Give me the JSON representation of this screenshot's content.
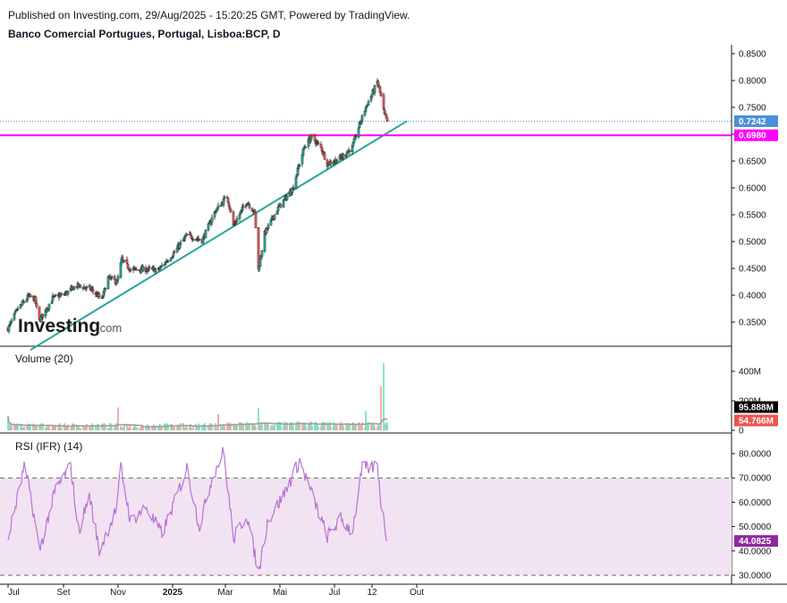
{
  "header": {
    "published": "Published on Investing.com, 29/Aug/2025 - 15:20:25 GMT, Powered by TradingView.",
    "symbol": "Banco Comercial Portugues, Portugal, Lisboa:BCP, D"
  },
  "logo": {
    "text": "Investing",
    "suffix": ".com"
  },
  "colors": {
    "up": "#26a69a",
    "down": "#ef5350",
    "trendline": "#26a69a",
    "hline": "#ff00ff",
    "last_price": "#4a90d9",
    "vol_up": "#7ee0c0",
    "vol_down": "#f4a6a0",
    "vol_ma": "#9e9e9e",
    "rsi": "#b774d6",
    "rsi_band": "#f2e3f2"
  },
  "chart_data": [
    {
      "type": "candlestick",
      "pane": "price",
      "title": "Banco Comercial Portugues, Portugal, Lisboa:BCP, D",
      "x_ticks": [
        "Jul",
        "Set",
        "Nov",
        "2025",
        "Mar",
        "Mai",
        "Jul",
        "12",
        "Out"
      ],
      "y_ticks": [
        "0.8500",
        "0.8000",
        "0.7500",
        "0.7000",
        "0.6500",
        "0.6000",
        "0.5500",
        "0.5000",
        "0.4500",
        "0.4000",
        "0.3500"
      ],
      "ylim": [
        0.3,
        0.86
      ],
      "last_price": "0.7242",
      "horizontal_line": {
        "value": 0.698,
        "label": "0.6980"
      },
      "trendline": {
        "from": [
          "2024-07-26",
          0.298
        ],
        "to": [
          "2025-09-20",
          0.7245
        ]
      },
      "anchors": [
        [
          "2024-07-01",
          0.338
        ],
        [
          "2024-07-12",
          0.375
        ],
        [
          "2024-07-24",
          0.398
        ],
        [
          "2024-07-31",
          0.392
        ],
        [
          "2024-08-05",
          0.352
        ],
        [
          "2024-08-20",
          0.395
        ],
        [
          "2024-09-02",
          0.402
        ],
        [
          "2024-09-16",
          0.418
        ],
        [
          "2024-10-01",
          0.412
        ],
        [
          "2024-10-14",
          0.392
        ],
        [
          "2024-10-21",
          0.433
        ],
        [
          "2024-10-31",
          0.425
        ],
        [
          "2024-11-05",
          0.466
        ],
        [
          "2024-11-15",
          0.448
        ],
        [
          "2024-12-02",
          0.448
        ],
        [
          "2024-12-16",
          0.447
        ],
        [
          "2025-01-02",
          0.478
        ],
        [
          "2025-01-17",
          0.512
        ],
        [
          "2025-02-03",
          0.502
        ],
        [
          "2025-02-17",
          0.555
        ],
        [
          "2025-03-03",
          0.585
        ],
        [
          "2025-03-10",
          0.53
        ],
        [
          "2025-03-25",
          0.575
        ],
        [
          "2025-04-03",
          0.553
        ],
        [
          "2025-04-07",
          0.448
        ],
        [
          "2025-04-14",
          0.515
        ],
        [
          "2025-04-28",
          0.56
        ],
        [
          "2025-05-15",
          0.598
        ],
        [
          "2025-05-28",
          0.675
        ],
        [
          "2025-06-05",
          0.695
        ],
        [
          "2025-06-16",
          0.675
        ],
        [
          "2025-06-23",
          0.645
        ],
        [
          "2025-07-07",
          0.655
        ],
        [
          "2025-07-21",
          0.676
        ],
        [
          "2025-07-28",
          0.713
        ],
        [
          "2025-08-05",
          0.75
        ],
        [
          "2025-08-14",
          0.782
        ],
        [
          "2025-08-18",
          0.798
        ],
        [
          "2025-08-22",
          0.77
        ],
        [
          "2025-08-26",
          0.735
        ],
        [
          "2025-08-29",
          0.724
        ]
      ]
    },
    {
      "type": "bar",
      "pane": "volume",
      "title": "Volume (20)",
      "y_ticks": [
        "400M",
        "200M",
        "0"
      ],
      "ylim": [
        0,
        470
      ],
      "last_values": [
        "95.888M",
        "54.766M"
      ],
      "spikes": [
        [
          "2024-07-01",
          96
        ],
        [
          "2024-11-01",
          155
        ],
        [
          "2025-02-21",
          110
        ],
        [
          "2025-04-07",
          150
        ],
        [
          "2025-08-05",
          130
        ],
        [
          "2025-08-22",
          300
        ],
        [
          "2025-08-25",
          455
        ]
      ]
    },
    {
      "type": "line",
      "pane": "rsi",
      "title": "RSI (IFR) (14)",
      "y_ticks": [
        "80.0000",
        "70.0000",
        "60.0000",
        "50.0000",
        "40.0000",
        "30.0000"
      ],
      "ylim": [
        27,
        86
      ],
      "band": [
        30,
        70
      ],
      "last_value": "44.0825",
      "anchors": [
        [
          "2024-07-01",
          45
        ],
        [
          "2024-07-19",
          74
        ],
        [
          "2024-07-26",
          64
        ],
        [
          "2024-08-05",
          40
        ],
        [
          "2024-08-23",
          65
        ],
        [
          "2024-09-09",
          75
        ],
        [
          "2024-09-18",
          48
        ],
        [
          "2024-09-30",
          63
        ],
        [
          "2024-10-11",
          40
        ],
        [
          "2024-10-31",
          58
        ],
        [
          "2024-11-04",
          75
        ],
        [
          "2024-11-15",
          52
        ],
        [
          "2024-12-02",
          58
        ],
        [
          "2024-12-20",
          47
        ],
        [
          "2025-01-03",
          60
        ],
        [
          "2025-01-17",
          74
        ],
        [
          "2025-01-31",
          50
        ],
        [
          "2025-02-14",
          70
        ],
        [
          "2025-02-27",
          81
        ],
        [
          "2025-03-10",
          45
        ],
        [
          "2025-03-25",
          55
        ],
        [
          "2025-04-07",
          31
        ],
        [
          "2025-04-17",
          52
        ],
        [
          "2025-05-05",
          63
        ],
        [
          "2025-05-23",
          77
        ],
        [
          "2025-06-06",
          63
        ],
        [
          "2025-06-23",
          46
        ],
        [
          "2025-07-08",
          53
        ],
        [
          "2025-07-21",
          48
        ],
        [
          "2025-08-01",
          74
        ],
        [
          "2025-08-12",
          74
        ],
        [
          "2025-08-18",
          76
        ],
        [
          "2025-08-22",
          60
        ],
        [
          "2025-08-29",
          44
        ]
      ]
    }
  ]
}
